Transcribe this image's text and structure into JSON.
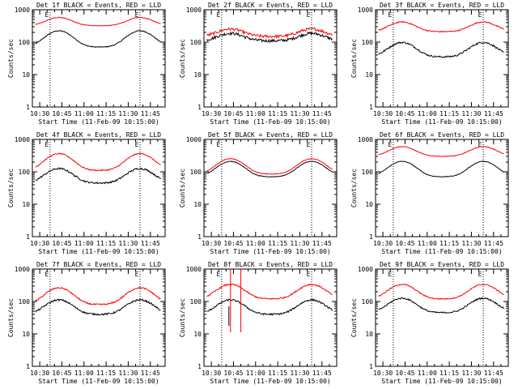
{
  "colors": {
    "events": "#000000",
    "lld": "#ff0000",
    "axes": "#000000",
    "background": "#ffffff"
  },
  "chart_data": [
    {
      "type": "line",
      "title": "Det 1f BLACK = Events, RED = LLD",
      "xlabel": "Start Time (11-Feb-09 10:15:00)",
      "ylabel": "Counts/sec",
      "yscale": "log",
      "ylim": [
        1,
        1000
      ],
      "xlim_minutes": [
        10,
        100
      ],
      "x_tick_labels": [
        "10:30",
        "10:45",
        "11:00",
        "11:15",
        "11:30",
        "11:45"
      ],
      "y_tick_labels": [
        "1",
        "10",
        "100",
        "1000"
      ],
      "marker_label": "E",
      "markers_minutes": [
        22,
        83
      ],
      "series": [
        {
          "key": "events",
          "base": 70,
          "amp": 2.2,
          "noise": 0.03
        },
        {
          "key": "lld",
          "base": 320,
          "amp": 0.8,
          "noise": 0.02
        }
      ]
    },
    {
      "type": "line",
      "title": "Det 2f BLACK = Events, RED = LLD",
      "xlabel": "Start Time (11-Feb-09 10:15:00)",
      "ylabel": "Counts/sec",
      "yscale": "log",
      "ylim": [
        1,
        1000
      ],
      "xlim_minutes": [
        10,
        100
      ],
      "x_tick_labels": [
        "10:30",
        "10:45",
        "11:00",
        "11:15",
        "11:30",
        "11:45"
      ],
      "y_tick_labels": [
        "1",
        "10",
        "100",
        "1000"
      ],
      "marker_label": "E",
      "markers_minutes": [
        22,
        83
      ],
      "series": [
        {
          "key": "events",
          "base": 110,
          "amp": 0.7,
          "noise": 0.1
        },
        {
          "key": "lld",
          "base": 150,
          "amp": 0.7,
          "noise": 0.1
        }
      ]
    },
    {
      "type": "line",
      "title": "Det 3f BLACK = Events, RED = LLD",
      "xlabel": "Start Time (11-Feb-09 10:15:00)",
      "ylabel": "Counts/sec",
      "yscale": "log",
      "ylim": [
        1,
        1000
      ],
      "xlim_minutes": [
        10,
        100
      ],
      "x_tick_labels": [
        "10:30",
        "10:45",
        "11:00",
        "11:15",
        "11:30",
        "11:45"
      ],
      "y_tick_labels": [
        "1",
        "10",
        "100",
        "1000"
      ],
      "marker_label": "E",
      "markers_minutes": [
        22,
        83
      ],
      "series": [
        {
          "key": "events",
          "base": 35,
          "amp": 1.8,
          "noise": 0.06
        },
        {
          "key": "lld",
          "base": 210,
          "amp": 1.0,
          "noise": 0.04
        }
      ]
    },
    {
      "type": "line",
      "title": "Det 4f BLACK = Events, RED = LLD",
      "xlabel": "Start Time (11-Feb-09 10:15:00)",
      "ylabel": "Counts/sec",
      "yscale": "log",
      "ylim": [
        1,
        1000
      ],
      "xlim_minutes": [
        10,
        100
      ],
      "x_tick_labels": [
        "10:30",
        "10:45",
        "11:00",
        "11:15",
        "11:30",
        "11:45"
      ],
      "y_tick_labels": [
        "1",
        "10",
        "100",
        "1000"
      ],
      "marker_label": "E",
      "markers_minutes": [
        22,
        83
      ],
      "series": [
        {
          "key": "events",
          "base": 45,
          "amp": 1.8,
          "noise": 0.06
        },
        {
          "key": "lld",
          "base": 110,
          "amp": 2.3,
          "noise": 0.04
        }
      ]
    },
    {
      "type": "line",
      "title": "Det 5f BLACK = Events, RED = LLD",
      "xlabel": "Start Time (11-Feb-09 10:15:00)",
      "ylabel": "Counts/sec",
      "yscale": "log",
      "ylim": [
        1,
        1000
      ],
      "xlim_minutes": [
        10,
        100
      ],
      "x_tick_labels": [
        "10:30",
        "10:45",
        "11:00",
        "11:15",
        "11:30",
        "11:45"
      ],
      "y_tick_labels": [
        "1",
        "10",
        "100",
        "1000"
      ],
      "marker_label": "E",
      "markers_minutes": [
        22,
        83
      ],
      "series": [
        {
          "key": "events",
          "base": 70,
          "amp": 2.0,
          "noise": 0.02
        },
        {
          "key": "lld",
          "base": 85,
          "amp": 2.0,
          "noise": 0.02
        }
      ]
    },
    {
      "type": "line",
      "title": "Det 6f BLACK = Events, RED = LLD",
      "xlabel": "Start Time (11-Feb-09 10:15:00)",
      "ylabel": "Counts/sec",
      "yscale": "log",
      "ylim": [
        1,
        1000
      ],
      "xlim_minutes": [
        10,
        100
      ],
      "x_tick_labels": [
        "10:30",
        "10:45",
        "11:00",
        "11:15",
        "11:30",
        "11:45"
      ],
      "y_tick_labels": [
        "1",
        "10",
        "100",
        "1000"
      ],
      "marker_label": "E",
      "markers_minutes": [
        22,
        83
      ],
      "series": [
        {
          "key": "events",
          "base": 70,
          "amp": 2.0,
          "noise": 0.02
        },
        {
          "key": "lld",
          "base": 300,
          "amp": 1.0,
          "noise": 0.02
        }
      ]
    },
    {
      "type": "line",
      "title": "Det 7f BLACK = Events, RED = LLD",
      "xlabel": "Start Time (11-Feb-09 10:15:00)",
      "ylabel": "Counts/sec",
      "yscale": "log",
      "ylim": [
        1,
        1000
      ],
      "xlim_minutes": [
        10,
        100
      ],
      "x_tick_labels": [
        "10:30",
        "10:45",
        "11:00",
        "11:15",
        "11:30",
        "11:45"
      ],
      "y_tick_labels": [
        "1",
        "10",
        "100",
        "1000"
      ],
      "marker_label": "E",
      "markers_minutes": [
        22,
        83
      ],
      "series": [
        {
          "key": "events",
          "base": 40,
          "amp": 1.8,
          "noise": 0.06
        },
        {
          "key": "lld",
          "base": 80,
          "amp": 2.3,
          "noise": 0.05
        }
      ]
    },
    {
      "type": "line",
      "title": "Det 8f BLACK = Events, RED = LLD",
      "xlabel": "Start Time (11-Feb-09 10:15:00)",
      "ylabel": "Counts/sec",
      "yscale": "log",
      "ylim": [
        1,
        1000
      ],
      "xlim_minutes": [
        10,
        100
      ],
      "x_tick_labels": [
        "10:30",
        "10:45",
        "11:00",
        "11:15",
        "11:30",
        "11:45"
      ],
      "y_tick_labels": [
        "1",
        "10",
        "100",
        "1000"
      ],
      "marker_label": "E",
      "markers_minutes": [
        22,
        83
      ],
      "spike_minutes": [
        28,
        35
      ],
      "series": [
        {
          "key": "events",
          "base": 40,
          "amp": 1.8,
          "noise": 0.06
        },
        {
          "key": "lld",
          "base": 120,
          "amp": 1.8,
          "noise": 0.05
        }
      ]
    },
    {
      "type": "line",
      "title": "Det 9f BLACK = Events, RED = LLD",
      "xlabel": "Start Time (11-Feb-09 10:15:00)",
      "ylabel": "Counts/sec",
      "yscale": "log",
      "ylim": [
        1,
        1000
      ],
      "xlim_minutes": [
        10,
        100
      ],
      "x_tick_labels": [
        "10:30",
        "10:45",
        "11:00",
        "11:15",
        "11:30",
        "11:45"
      ],
      "y_tick_labels": [
        "1",
        "10",
        "100",
        "1000"
      ],
      "marker_label": "E",
      "markers_minutes": [
        22,
        83
      ],
      "series": [
        {
          "key": "events",
          "base": 45,
          "amp": 1.8,
          "noise": 0.05
        },
        {
          "key": "lld",
          "base": 120,
          "amp": 1.8,
          "noise": 0.04
        }
      ]
    }
  ]
}
